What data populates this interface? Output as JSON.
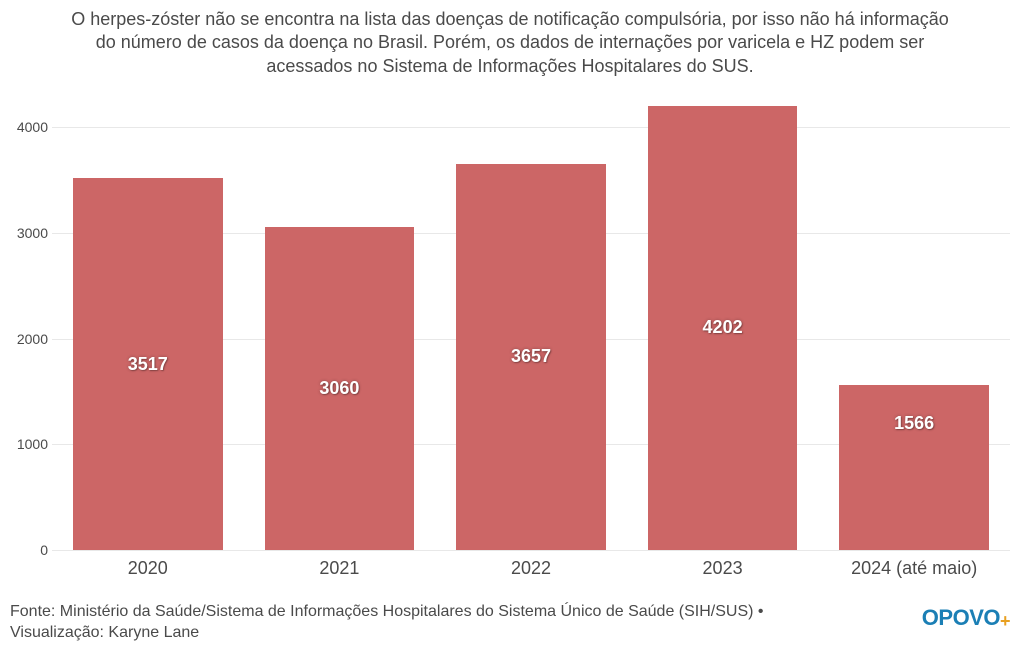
{
  "title": "O herpes-zóster não se encontra na lista das doenças de notificação compulsória, por isso não há informação do número de casos da doença no Brasil. Porém, os dados de internações por varicela e HZ podem ser acessados no Sistema de Informações Hospitalares do SUS.",
  "chart": {
    "type": "bar",
    "categories": [
      "2020",
      "2021",
      "2022",
      "2023",
      "2024 (até maio)"
    ],
    "values": [
      3517,
      3060,
      3657,
      4202,
      1566
    ],
    "bar_color": "#cc6666",
    "value_label_color": "#ffffff",
    "ylim": [
      0,
      4400
    ],
    "yticks": [
      0,
      1000,
      2000,
      3000,
      4000
    ],
    "grid_color": "#e8e8e8",
    "background_color": "#ffffff",
    "bar_width_pct": 78,
    "title_fontsize": 18,
    "axis_fontsize": 14,
    "category_fontsize": 18,
    "value_fontsize": 18
  },
  "footer": {
    "source": "Fonte: Ministério da Saúde/Sistema de Informações Hospitalares do Sistema Único de Saúde (SIH/SUS) • Visualização: Karyne Lane",
    "logo_main": "OPOVO",
    "logo_plus": "+",
    "logo_color": "#1b7fb5",
    "logo_plus_color": "#e8a021"
  }
}
